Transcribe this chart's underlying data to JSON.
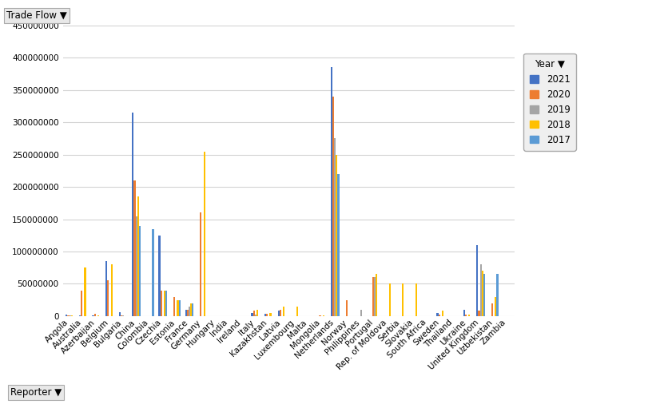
{
  "categories": [
    "Angola",
    "Australia",
    "Azerbaijan",
    "Belgium",
    "Bulgaria",
    "China",
    "Colombia",
    "Czechia",
    "Estonia",
    "France",
    "Germany",
    "Hungary",
    "India",
    "Ireland",
    "Italy",
    "Kazakhstan",
    "Latvia",
    "Luxembourg",
    "Malta",
    "Mongolia",
    "Netherlands",
    "Norway",
    "Philippines",
    "Portugal",
    "Rep. of Moldova",
    "Serbia",
    "Slovakia",
    "South Africa",
    "Sweden",
    "Thailand",
    "Ukraine",
    "United Kingdom",
    "Uzbekistan",
    "Zambia"
  ],
  "years": [
    "2021",
    "2020",
    "2019",
    "2018",
    "2017"
  ],
  "colors": {
    "2021": "#4472C4",
    "2020": "#ED7D31",
    "2019": "#A5A5A5",
    "2018": "#FFC000",
    "2017": "#5B9BD5"
  },
  "data": {
    "2021": [
      2000000,
      1000000,
      1000000,
      85000000,
      6000000,
      315000000,
      0,
      125000000,
      0,
      10000000,
      0,
      0,
      0,
      0,
      5000000,
      3000000,
      8000000,
      0,
      0,
      0,
      385000000,
      0,
      0,
      0,
      0,
      0,
      0,
      0,
      5000000,
      0,
      10000000,
      110000000,
      0,
      0
    ],
    "2020": [
      1000000,
      40000000,
      4000000,
      55000000,
      1000000,
      210000000,
      0,
      40000000,
      30000000,
      10000000,
      160000000,
      0,
      0,
      0,
      8000000,
      3000000,
      10000000,
      0,
      0,
      500000,
      340000000,
      25000000,
      0,
      60000000,
      0,
      0,
      0,
      0,
      2000000,
      0,
      2000000,
      8000000,
      20000000,
      0
    ],
    "2019": [
      500000,
      0,
      0,
      0,
      1000000,
      155000000,
      0,
      0,
      0,
      15000000,
      0,
      0,
      0,
      0,
      2000000,
      0,
      0,
      0,
      0,
      0,
      275000000,
      0,
      10000000,
      60000000,
      0,
      0,
      0,
      0,
      0,
      0,
      0,
      80000000,
      0,
      0
    ],
    "2018": [
      500000,
      75000000,
      1000000,
      80000000,
      0,
      185000000,
      0,
      40000000,
      25000000,
      20000000,
      255000000,
      0,
      0,
      0,
      10000000,
      5000000,
      15000000,
      15000000,
      0,
      500000,
      250000000,
      0,
      0,
      65000000,
      50000000,
      50000000,
      50000000,
      0,
      8000000,
      0,
      2000000,
      70000000,
      30000000,
      0
    ],
    "2017": [
      0,
      0,
      0,
      0,
      0,
      140000000,
      135000000,
      40000000,
      25000000,
      20000000,
      0,
      0,
      0,
      0,
      0,
      0,
      0,
      0,
      0,
      0,
      220000000,
      0,
      0,
      0,
      0,
      0,
      0,
      0,
      0,
      0,
      0,
      65000000,
      65000000,
      0
    ]
  },
  "ylim": [
    0,
    450000000
  ],
  "yticks": [
    0,
    50000000,
    100000000,
    150000000,
    200000000,
    250000000,
    300000000,
    350000000,
    400000000,
    450000000
  ],
  "background_color": "#FFFFFF",
  "grid_color": "#D3D3D3",
  "legend_title": "Year",
  "filter_label_tradeflow": "Trade Flow",
  "filter_label_reporter": "Reporter",
  "tick_fontsize": 7.5,
  "legend_fontsize": 8.5
}
